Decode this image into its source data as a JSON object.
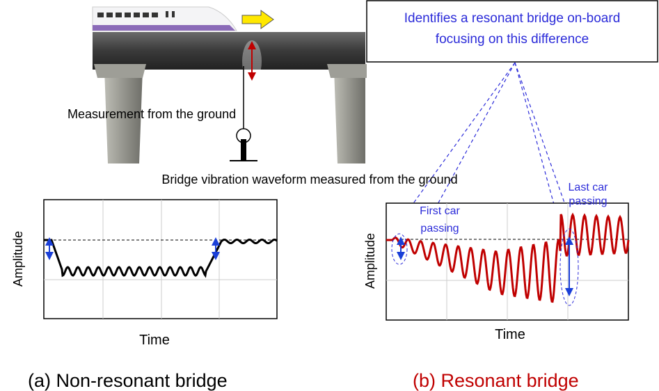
{
  "callout": {
    "lines": [
      "Identifies a resonant bridge on-board",
      "focusing on this difference"
    ]
  },
  "measurement_label": "Measurement from the ground",
  "section_title": "Bridge vibration waveform measured from the ground",
  "left_panel": {
    "y_label": "Amplitude",
    "x_label": "Time",
    "caption": "(a) Non-resonant bridge"
  },
  "right_panel": {
    "y_label": "Amplitude",
    "x_label": "Time",
    "caption": "(b) Resonant bridge",
    "first_car_label": [
      "First car",
      "passing"
    ],
    "last_car_label": [
      "Last car",
      "passing"
    ]
  }
}
